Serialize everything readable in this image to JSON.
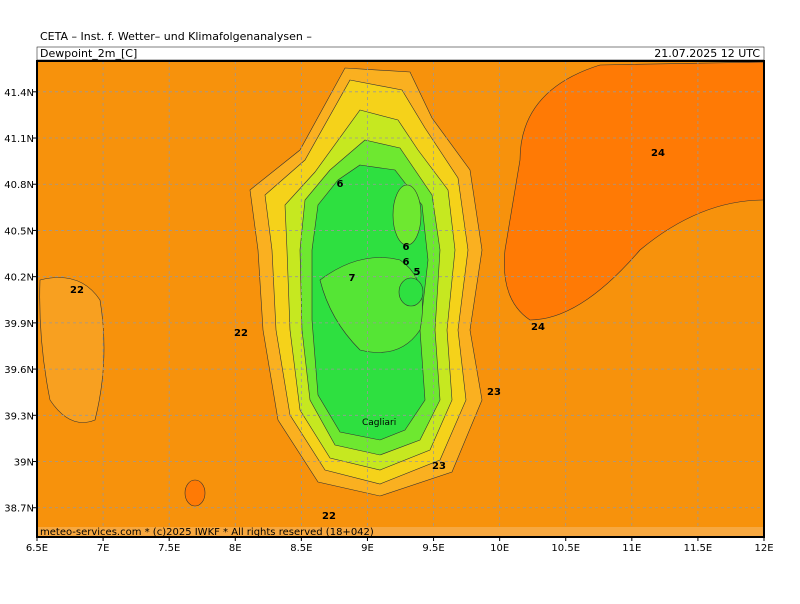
{
  "header": {
    "institute": "CETA – Inst. f. Wetter– und Klimafolgenanalysen –",
    "field": "Dewpoint_2m_[C]",
    "valid": "21.07.2025 12 UTC"
  },
  "footer": "meteo-services.com * (c)2025 IWKF * All rights reserved (18+042)",
  "map": {
    "xlim": [
      6.5,
      12
    ],
    "ylim": [
      38.51,
      41.6
    ],
    "xticks": [
      {
        "value": 6.5,
        "label": "6.5E"
      },
      {
        "value": 7,
        "label": "7E"
      },
      {
        "value": 7.5,
        "label": "7.5E"
      },
      {
        "value": 8,
        "label": "8E"
      },
      {
        "value": 8.5,
        "label": "8.5E"
      },
      {
        "value": 9,
        "label": "9E"
      },
      {
        "value": 9.5,
        "label": "9.5E"
      },
      {
        "value": 10,
        "label": "10E"
      },
      {
        "value": 10.5,
        "label": "10.5E"
      },
      {
        "value": 11,
        "label": "11E"
      },
      {
        "value": 11.5,
        "label": "11.5E"
      },
      {
        "value": 12,
        "label": "12E"
      }
    ],
    "yticks": [
      {
        "value": 41.4,
        "label": "41.4N"
      },
      {
        "value": 41.1,
        "label": "41.1N"
      },
      {
        "value": 40.8,
        "label": "40.8N"
      },
      {
        "value": 40.5,
        "label": "40.5N"
      },
      {
        "value": 40.2,
        "label": "40.2N"
      },
      {
        "value": 39.9,
        "label": "39.9N"
      },
      {
        "value": 39.6,
        "label": "39.6N"
      },
      {
        "value": 39.3,
        "label": "39.3N"
      },
      {
        "value": 39,
        "label": "39N"
      },
      {
        "value": 38.7,
        "label": "38.7N"
      }
    ],
    "grid": true
  },
  "contour_labels": [
    "24",
    "24",
    "23",
    "23",
    "22",
    "22",
    "22",
    "6",
    "6",
    "6",
    "5",
    "7"
  ],
  "city": "Cagliari"
}
